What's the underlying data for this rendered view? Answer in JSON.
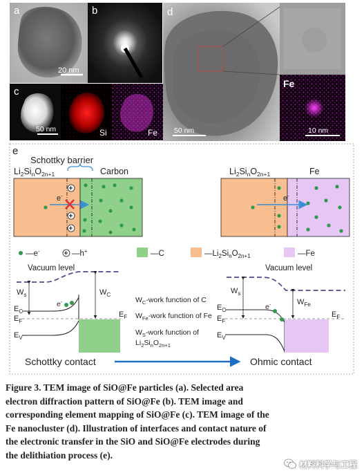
{
  "panels": {
    "a": {
      "letter": "a",
      "scale_bar": "20 nm"
    },
    "b": {
      "letter": "b"
    },
    "c": {
      "letter": "c",
      "scale_bar": "50 nm",
      "map_si": "Si",
      "map_fe": "Fe"
    },
    "d": {
      "letter": "d",
      "scale_bar": "50 nm",
      "inset_label": "Fe",
      "inset_scale_bar": "10 nm"
    },
    "e": {
      "letter": "e"
    }
  },
  "schematic": {
    "left": {
      "title": "Schottky barrier",
      "left_label_main": "Li",
      "left_label_sub1": "2",
      "left_label_mid": "Si",
      "left_label_sub2": "n",
      "left_label_mid2": "O",
      "left_label_sub3": "2n+1",
      "right_label": "Carbon",
      "electron": "e",
      "electron_sup": "-"
    },
    "right": {
      "left_label_main": "Li",
      "left_label_sub1": "2",
      "left_label_mid": "Si",
      "left_label_sub2": "n",
      "left_label_mid2": "O",
      "left_label_sub3": "2n+1",
      "right_label": "Fe",
      "electron": "e",
      "electron_sup": "-"
    },
    "colors": {
      "li2sio": "#f9be8f",
      "carbon": "#8fd18a",
      "fe": "#e6c6f3",
      "electron": "#2f9a4e",
      "arrow": "#3a8fd4",
      "cross": "#e03030"
    }
  },
  "legend": {
    "electron": "—e",
    "electron_sup": "-",
    "hole_symbol": "+",
    "hole": "—h",
    "hole_sup": "+",
    "carbon": "—C",
    "li2sio_main": "—Li",
    "li2sio_sub1": "2",
    "li2sio_mid": "Si",
    "li2sio_sub2": "n",
    "li2sio_mid2": "O",
    "li2sio_sub3": "2n+1",
    "fe": "—Fe"
  },
  "band_left": {
    "vacuum": "Vacuum level",
    "ws": "W",
    "ws_sub": "s",
    "wc": "W",
    "wc_sub": "C",
    "ec": "E",
    "ec_sub": "C",
    "ef": "E",
    "ef_sub": "F",
    "ev": "E",
    "ev_sub": "V",
    "ef_right": "E",
    "ef_right_sub": "F",
    "electron": "e",
    "electron_sup": "-",
    "contact": "Schottky contact"
  },
  "band_right": {
    "vacuum": "Vacuum level",
    "ws": "W",
    "ws_sub": "s",
    "wfe": "W",
    "wfe_sub": "Fe",
    "ec": "E",
    "ec_sub": "C",
    "ef": "E",
    "ef_sub": "F",
    "ev": "E",
    "ev_sub": "V",
    "ef_right": "E",
    "ef_right_sub": "F",
    "electron": "e",
    "electron_sup": "-",
    "contact": "Ohmic contact"
  },
  "notes": {
    "wc_main": "W",
    "wc_sub": "C",
    "wc_text": "-work function of C",
    "wfe_main": "W",
    "wfe_sub": "Fe",
    "wfe_text": "-work function of Fe",
    "ws_main": "W",
    "ws_sub": "S",
    "ws_text": "-work function of",
    "ws_line2_main": "Li",
    "ws_line2_sub1": "2",
    "ws_line2_mid": "Si",
    "ws_line2_sub2": "n",
    "ws_line2_mid2": "O",
    "ws_line2_sub3": "2n+1"
  },
  "caption": {
    "lines": [
      "Figure 3. TEM image of SiO@Fe particles (a). Selected area",
      "electron diffraction pattern of SiO@Fe (b). TEM image and",
      "corresponding element mapping of SiO@Fe (c). TEM image of the",
      "Fe nanocluster (d). Illustration of interfaces and contact nature of",
      "the electronic transfer in the SiO and SiO@Fe electrodes during",
      "the delithiation process (e)."
    ]
  },
  "watermark": {
    "text": "材料科学与工程"
  }
}
